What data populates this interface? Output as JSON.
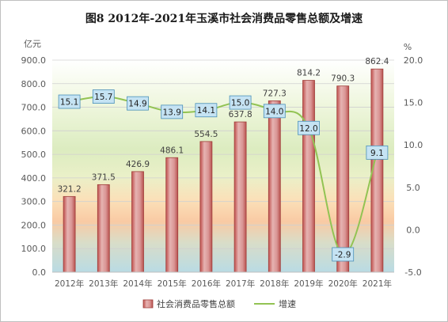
{
  "chart_data": {
    "type": "bar",
    "title": "图8  2012年-2021年玉溪市社会消费品零售总额及增速",
    "left_unit": "亿元",
    "right_unit": "%",
    "categories": [
      "2012年",
      "2013年",
      "2014年",
      "2015年",
      "2016年",
      "2017年",
      "2018年",
      "2019年",
      "2020年",
      "2021年"
    ],
    "series": [
      {
        "name": "社会消费品零售总额",
        "type": "bar",
        "axis": "left",
        "values": [
          321.2,
          371.5,
          426.9,
          486.1,
          554.5,
          637.8,
          727.3,
          814.2,
          790.3,
          862.4
        ],
        "labels": [
          "321.2",
          "371.5",
          "426.9",
          "486.1",
          "554.5",
          "637.8",
          "727.3",
          "814.2",
          "790.3",
          "862.4"
        ],
        "color": "#d99594"
      },
      {
        "name": "增速",
        "type": "line",
        "axis": "right",
        "values": [
          15.1,
          15.7,
          14.9,
          13.9,
          14.1,
          15.0,
          14.0,
          12.0,
          -2.9,
          9.1
        ],
        "labels": [
          "15.1",
          "15.7",
          "14.9",
          "13.9",
          "14.1",
          "15.0",
          "14.0",
          "12.0",
          "-2.9",
          "9.1"
        ],
        "color": "#92c353"
      }
    ],
    "y_left": {
      "min": 0,
      "max": 900,
      "step": 100,
      "ticks": [
        "0.0",
        "100.0",
        "200.0",
        "300.0",
        "400.0",
        "500.0",
        "600.0",
        "700.0",
        "800.0",
        "900.0"
      ]
    },
    "y_right": {
      "min": -5,
      "max": 20,
      "step": 5,
      "ticks": [
        "-5.0",
        "0.0",
        "5.0",
        "10.0",
        "15.0",
        "20.0"
      ]
    },
    "grid": true,
    "legend_position": "bottom"
  }
}
